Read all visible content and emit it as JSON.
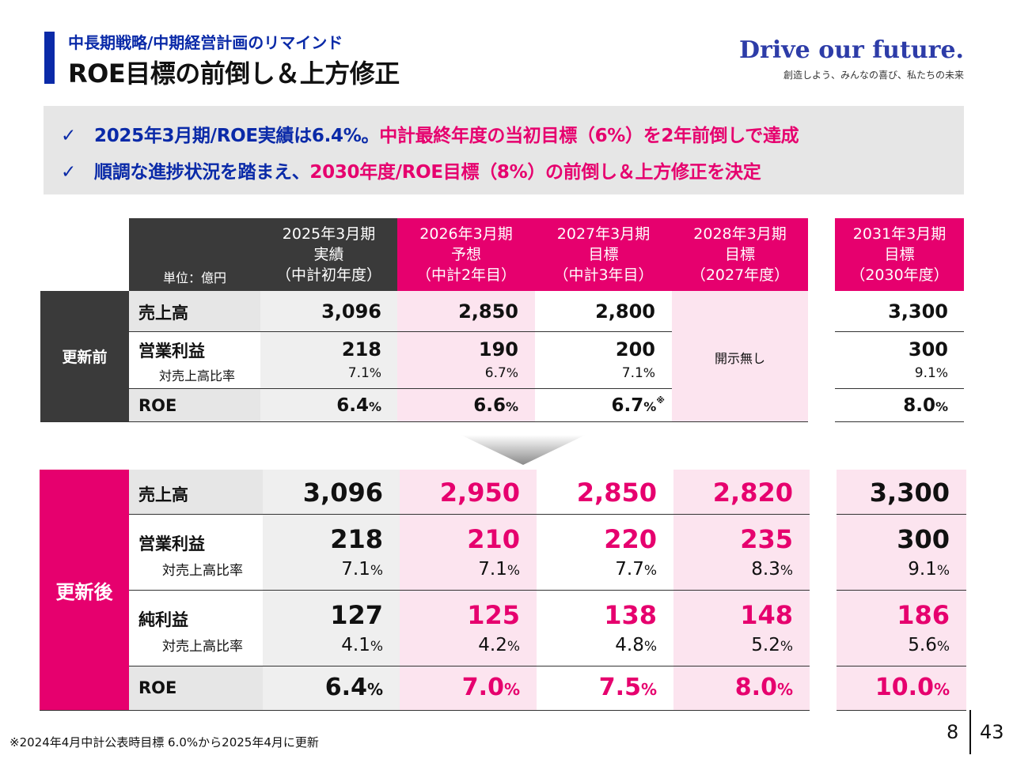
{
  "header": {
    "subtitle": "中長期戦略/中期経営計画のリマインド",
    "title": "ROE目標の前倒し＆上方修正",
    "brand": "Drive our future.",
    "brand_sub": "創造しよう、みんなの喜び、私たちの未来"
  },
  "summary": {
    "check": "✓",
    "line1_blue": "2025年3月期/ROE実績は6.4%。",
    "line1_pink": "中計最終年度の当初目標（6%）を2年前倒しで達成",
    "line2_blue": "順調な進捗状況を踏まえ、",
    "line2_pink": "2030年度/ROE目標（8%）の前倒し＆上方修正を決定"
  },
  "table": {
    "unit": "単位：億円",
    "columns": [
      {
        "l1": "2025年3月期",
        "l2": "実績",
        "l3": "（中計初年度）"
      },
      {
        "l1": "2026年3月期",
        "l2": "予想",
        "l3": "（中計2年目）"
      },
      {
        "l1": "2027年3月期",
        "l2": "目標",
        "l3": "（中計3年目）"
      },
      {
        "l1": "2028年3月期",
        "l2": "目標",
        "l3": "（2027年度）"
      },
      {
        "l1": "2031年3月期",
        "l2": "目標",
        "l3": "（2030年度）"
      }
    ],
    "before": {
      "label": "更新前",
      "sales_label": "売上高",
      "op_label": "営業利益",
      "ratio_label": "対売上高比率",
      "roe_label": "ROE",
      "not_disclosed": "開示無し",
      "sales": [
        "3,096",
        "2,850",
        "2,800",
        "3,300"
      ],
      "op": [
        "218",
        "190",
        "200",
        "300"
      ],
      "ratio": [
        "7.1",
        "6.7",
        "7.1",
        "9.1"
      ],
      "roe": [
        "6.4",
        "6.6",
        "6.7",
        "8.0"
      ],
      "pct": "%",
      "mark": "※"
    },
    "after": {
      "label": "更新後",
      "sales_label": "売上高",
      "op_label": "営業利益",
      "op_ratio_label": "対売上高比率",
      "net_label": "純利益",
      "net_ratio_label": "対売上高比率",
      "roe_label": "ROE",
      "sales": [
        "3,096",
        "2,950",
        "2,850",
        "2,820",
        "3,300"
      ],
      "op": [
        "218",
        "210",
        "220",
        "235",
        "300"
      ],
      "op_ratio": [
        "7.1",
        "7.1",
        "7.7",
        "8.3",
        "9.1"
      ],
      "net": [
        "127",
        "125",
        "138",
        "148",
        "186"
      ],
      "net_ratio": [
        "4.1",
        "4.2",
        "4.8",
        "5.2",
        "5.6"
      ],
      "roe": [
        "6.4",
        "7.0",
        "7.5",
        "8.0",
        "10.0"
      ],
      "pct": "%"
    }
  },
  "footnote": "※2024年4月中計公表時目標 6.0%から2025年4月に更新",
  "page": {
    "current": "8",
    "total": "43"
  },
  "colors": {
    "navy": "#0a2aa8",
    "magenta": "#e6006e",
    "dark": "#3a3a3a"
  }
}
